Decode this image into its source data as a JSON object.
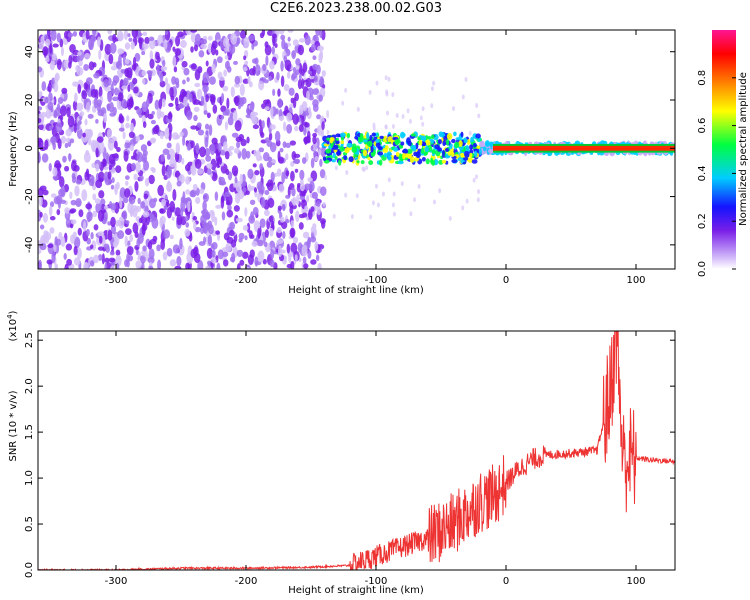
{
  "title": "C2E6.2023.238.00.02.G03",
  "chart_data": [
    {
      "type": "heatmap",
      "xlabel": "Height of straight line (km)",
      "ylabel": "Frequency (Hz)",
      "xlim": [
        -360,
        130
      ],
      "ylim": [
        -50,
        49
      ],
      "xticks": [
        -300,
        -200,
        -100,
        0,
        100
      ],
      "yticks": [
        -40,
        -20,
        0,
        20,
        40
      ],
      "colorbar": {
        "label": "Normalized spectral amplitude",
        "range": [
          0.0,
          1.0
        ],
        "ticks": [
          "0.0",
          "0.2",
          "0.4",
          "0.6",
          "0.8"
        ],
        "tick_values": [
          0.0,
          0.2,
          0.4,
          0.6,
          0.8
        ],
        "colors": [
          "#ffffff",
          "#c8a8f8",
          "#7a1fe8",
          "#1414ff",
          "#00ccff",
          "#00ff40",
          "#ffff00",
          "#ff8000",
          "#ff0000",
          "#ff1493"
        ]
      },
      "features": [
        {
          "region": "broadband noise",
          "x_range": [
            -360,
            -140
          ],
          "y_range": [
            -50,
            49
          ],
          "amplitude": 0.1
        },
        {
          "region": "narrowband signal",
          "x_range": [
            -140,
            130
          ],
          "y_center": 0,
          "amplitude_at_0km": 0.9
        }
      ]
    },
    {
      "type": "line",
      "xlabel": "Height of straight line (km)",
      "ylabel": "SNR (10 * v/v)",
      "y_multiplier_label": "(x10",
      "y_multiplier_exp": "4",
      "xlim": [
        -360,
        130
      ],
      "ylim": [
        0,
        2.6
      ],
      "xticks": [
        -300,
        -200,
        -100,
        0,
        100
      ],
      "yticks": [
        "0.0",
        "0.5",
        "1.0",
        "1.5",
        "2.0",
        "2.5"
      ],
      "ytick_values": [
        0.0,
        0.5,
        1.0,
        1.5,
        2.0,
        2.5
      ],
      "series": [
        {
          "color": "#ee3333",
          "x": [
            -360,
            -300,
            -250,
            -200,
            -150,
            -120,
            -100,
            -80,
            -60,
            -40,
            -20,
            -10,
            0,
            10,
            20,
            30,
            50,
            70,
            80,
            85,
            90,
            100,
            110,
            130
          ],
          "y": [
            0.0,
            0.0,
            0.02,
            0.02,
            0.03,
            0.05,
            0.15,
            0.25,
            0.35,
            0.5,
            0.75,
            0.8,
            0.95,
            1.1,
            1.2,
            1.25,
            1.27,
            1.3,
            1.9,
            2.6,
            1.2,
            1.22,
            1.2,
            1.18
          ]
        }
      ]
    }
  ]
}
